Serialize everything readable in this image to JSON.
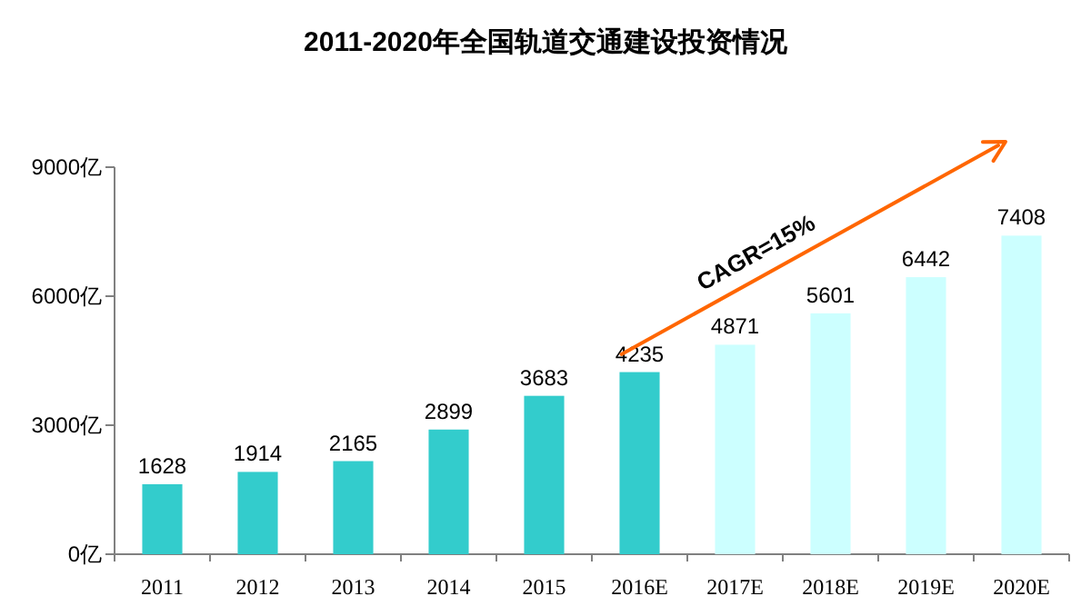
{
  "chart_data": {
    "type": "bar",
    "title": "2011-2020年全国轨道交通建设投资情况",
    "categories": [
      "2011",
      "2012",
      "2013",
      "2014",
      "2015",
      "2016E",
      "2017E",
      "2018E",
      "2019E",
      "2020E"
    ],
    "values": [
      1628,
      1914,
      2165,
      2899,
      3683,
      4235,
      4871,
      5601,
      6442,
      7408
    ],
    "colors": [
      "#33cccc",
      "#33cccc",
      "#33cccc",
      "#33cccc",
      "#33cccc",
      "#33cccc",
      "#ccffff",
      "#ccffff",
      "#ccffff",
      "#ccffff"
    ],
    "ylim": [
      0,
      9000
    ],
    "yticks": [
      {
        "value": 0,
        "label": "0亿"
      },
      {
        "value": 3000,
        "label": "3000亿"
      },
      {
        "value": 6000,
        "label": "6000亿"
      },
      {
        "value": 9000,
        "label": "9000亿"
      }
    ],
    "data_labels": true,
    "annotations": [
      "CAGR=15%"
    ]
  }
}
